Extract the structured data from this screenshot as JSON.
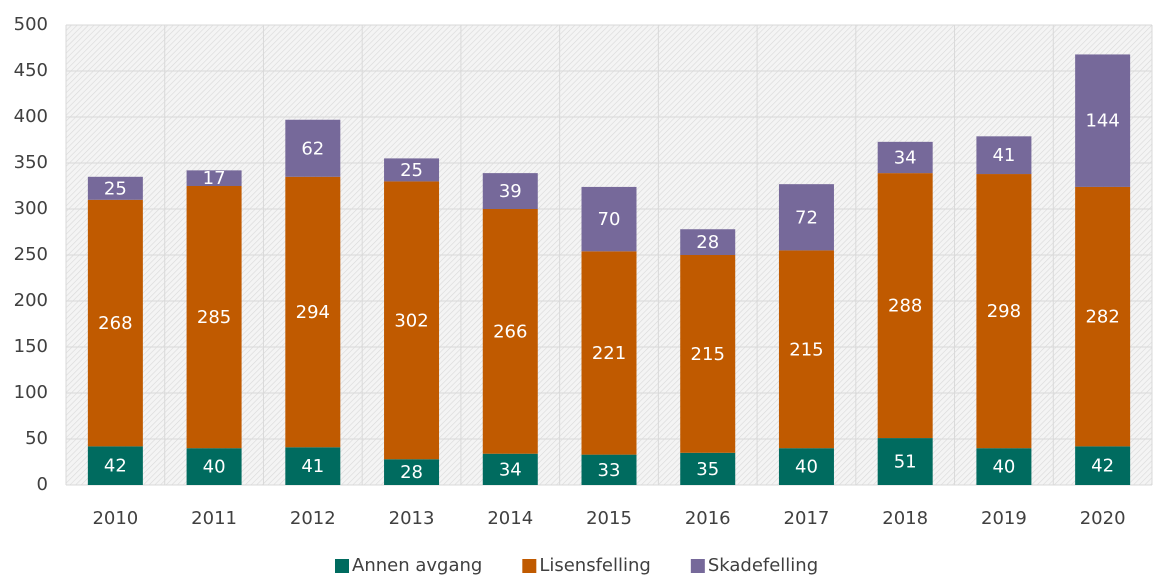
{
  "chart_data": {
    "type": "stacked_bar",
    "categories": [
      "2010",
      "2011",
      "2012",
      "2013",
      "2014",
      "2015",
      "2016",
      "2017",
      "2018",
      "2019",
      "2020"
    ],
    "series": [
      {
        "name": "Annen avgang",
        "color": "#006b5f",
        "values": [
          42,
          40,
          41,
          28,
          34,
          33,
          35,
          40,
          51,
          40,
          42
        ]
      },
      {
        "name": "Lisensfelling",
        "color": "#c05a00",
        "values": [
          268,
          285,
          294,
          302,
          266,
          221,
          215,
          215,
          288,
          298,
          282
        ]
      },
      {
        "name": "Skadefelling",
        "color": "#76699a",
        "values": [
          25,
          17,
          62,
          25,
          39,
          70,
          28,
          72,
          34,
          41,
          144
        ]
      }
    ],
    "ylim": [
      0,
      500
    ],
    "yticks": [
      0,
      50,
      100,
      150,
      200,
      250,
      300,
      350,
      400,
      450,
      500
    ],
    "grid": true,
    "legend": "bottom"
  }
}
